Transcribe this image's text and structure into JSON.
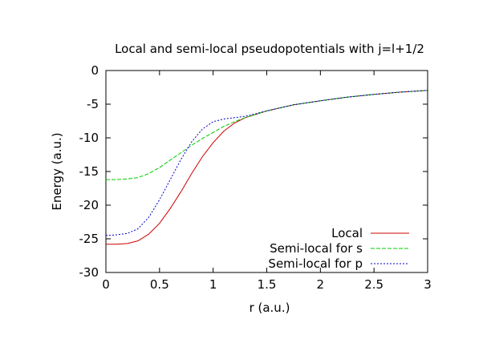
{
  "chart_data": {
    "type": "line",
    "title": "Local and semi-local pseudopotentials with j=l+1/2",
    "xlabel": "r (a.u.)",
    "ylabel": "Energy (a.u.)",
    "xlim": [
      0,
      3
    ],
    "ylim": [
      -30,
      0
    ],
    "xticks": [
      "0",
      "0.5",
      "1",
      "1.5",
      "2",
      "2.5",
      "3"
    ],
    "yticks": [
      "0",
      "-5",
      "-10",
      "-15",
      "-20",
      "-25",
      "-30"
    ],
    "grid": false,
    "legend_position": "bottom-right",
    "series": [
      {
        "name": "Local",
        "color": "#cc0000",
        "dash": "solid",
        "x": [
          0,
          0.1,
          0.2,
          0.3,
          0.4,
          0.5,
          0.6,
          0.7,
          0.8,
          0.9,
          1.0,
          1.1,
          1.2,
          1.3,
          1.4,
          1.5,
          1.75,
          2.0,
          2.25,
          2.5,
          2.75,
          3.0
        ],
        "y": [
          -25.8,
          -25.8,
          -25.7,
          -25.3,
          -24.3,
          -22.7,
          -20.5,
          -18.0,
          -15.3,
          -12.8,
          -10.7,
          -9.0,
          -7.8,
          -7.0,
          -6.5,
          -6.0,
          -5.1,
          -4.5,
          -3.95,
          -3.55,
          -3.2,
          -2.95
        ]
      },
      {
        "name": "Semi-local for s",
        "color": "#00cc00",
        "dash": "long",
        "x": [
          0,
          0.1,
          0.2,
          0.3,
          0.4,
          0.5,
          0.6,
          0.7,
          0.8,
          0.9,
          1.0,
          1.1,
          1.2,
          1.3,
          1.4,
          1.5,
          1.75,
          2.0,
          2.25,
          2.5,
          2.75,
          3.0
        ],
        "y": [
          -16.2,
          -16.2,
          -16.1,
          -15.9,
          -15.3,
          -14.4,
          -13.3,
          -12.2,
          -11.1,
          -10.1,
          -9.2,
          -8.3,
          -7.6,
          -7.0,
          -6.5,
          -6.0,
          -5.1,
          -4.5,
          -3.95,
          -3.55,
          -3.2,
          -2.95
        ]
      },
      {
        "name": "Semi-local for p",
        "color": "#0000cc",
        "dash": "dotted",
        "x": [
          0,
          0.1,
          0.2,
          0.3,
          0.4,
          0.5,
          0.6,
          0.7,
          0.8,
          0.9,
          1.0,
          1.1,
          1.2,
          1.3,
          1.4,
          1.5,
          1.75,
          2.0,
          2.25,
          2.5,
          2.75,
          3.0
        ],
        "y": [
          -24.5,
          -24.4,
          -24.2,
          -23.5,
          -21.8,
          -19.2,
          -16.2,
          -13.2,
          -10.6,
          -8.7,
          -7.6,
          -7.2,
          -7.0,
          -6.8,
          -6.4,
          -6.0,
          -5.1,
          -4.5,
          -3.95,
          -3.55,
          -3.2,
          -2.95
        ]
      }
    ]
  }
}
